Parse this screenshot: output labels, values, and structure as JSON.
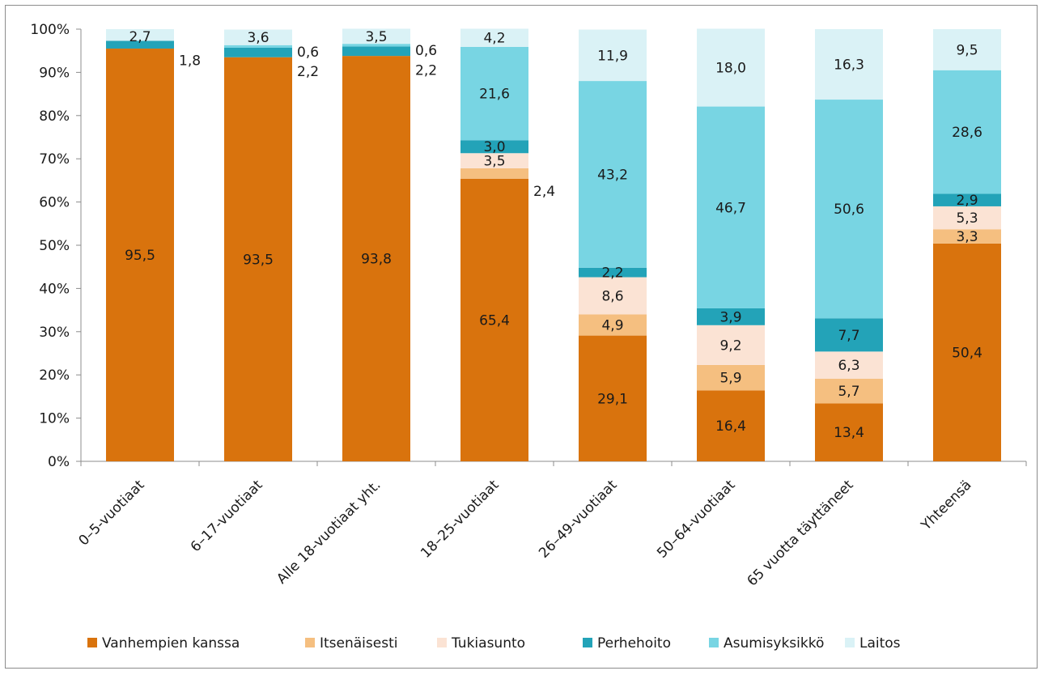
{
  "chart_data": {
    "type": "bar",
    "stacked": true,
    "percent": true,
    "categories": [
      "0–5-vuotiaat",
      "6–17-vuotiaat",
      "Alle 18-vuotiaat yht.",
      "18–25-vuotiaat",
      "26–49-vuotiaat",
      "50–64-vuotiaat",
      "65 vuotta täyttäneet",
      "Yhteensä"
    ],
    "series": [
      {
        "name": "Vanhempien kanssa",
        "color": "#d9730d",
        "values": [
          95.5,
          93.5,
          93.8,
          65.4,
          29.1,
          16.4,
          13.4,
          50.4
        ],
        "labels": [
          "95,5",
          "93,5",
          "93,8",
          "65,4",
          "29,1",
          "16,4",
          "13,4",
          "50,4"
        ]
      },
      {
        "name": "Itsenäisesti",
        "color": "#f5bf80",
        "values": [
          0,
          0,
          0,
          2.4,
          4.9,
          5.9,
          5.7,
          3.3
        ],
        "labels": [
          "",
          "",
          "",
          "2,4",
          "4,9",
          "5,9",
          "5,7",
          "3,3"
        ]
      },
      {
        "name": "Tukiasunto",
        "color": "#fbe3d4",
        "values": [
          0,
          0,
          0,
          3.5,
          8.6,
          9.2,
          6.3,
          5.3
        ],
        "labels": [
          "",
          "",
          "",
          "3,5",
          "8,6",
          "9,2",
          "6,3",
          "5,3"
        ]
      },
      {
        "name": "Perhehoito",
        "color": "#23a3b8",
        "values": [
          1.8,
          2.2,
          2.2,
          3.0,
          2.2,
          3.9,
          7.7,
          2.9
        ],
        "labels": [
          "1,8",
          "2,2",
          "2,2",
          "3,0",
          "2,2",
          "3,9",
          "7,7",
          "2,9"
        ]
      },
      {
        "name": "Asumisyksikkö",
        "color": "#78d5e3",
        "values": [
          0,
          0.6,
          0.6,
          21.6,
          43.2,
          46.7,
          50.6,
          28.6
        ],
        "labels": [
          "",
          "0,6",
          "0,6",
          "21,6",
          "43,2",
          "46,7",
          "50,6",
          "28,6"
        ]
      },
      {
        "name": "Laitos",
        "color": "#daf2f6",
        "values": [
          2.7,
          3.6,
          3.5,
          4.2,
          11.9,
          18.0,
          16.3,
          9.5
        ],
        "labels": [
          "2,7",
          "3,6",
          "3,5",
          "4,2",
          "11,9",
          "18,0",
          "16,3",
          "9,5"
        ]
      }
    ],
    "y_ticks": [
      "0%",
      "10%",
      "20%",
      "30%",
      "40%",
      "50%",
      "60%",
      "70%",
      "80%",
      "90%",
      "100%"
    ],
    "ylim": [
      0,
      100
    ],
    "title": "",
    "xlabel": "",
    "ylabel": "",
    "grid": false,
    "legend_position": "bottom"
  }
}
